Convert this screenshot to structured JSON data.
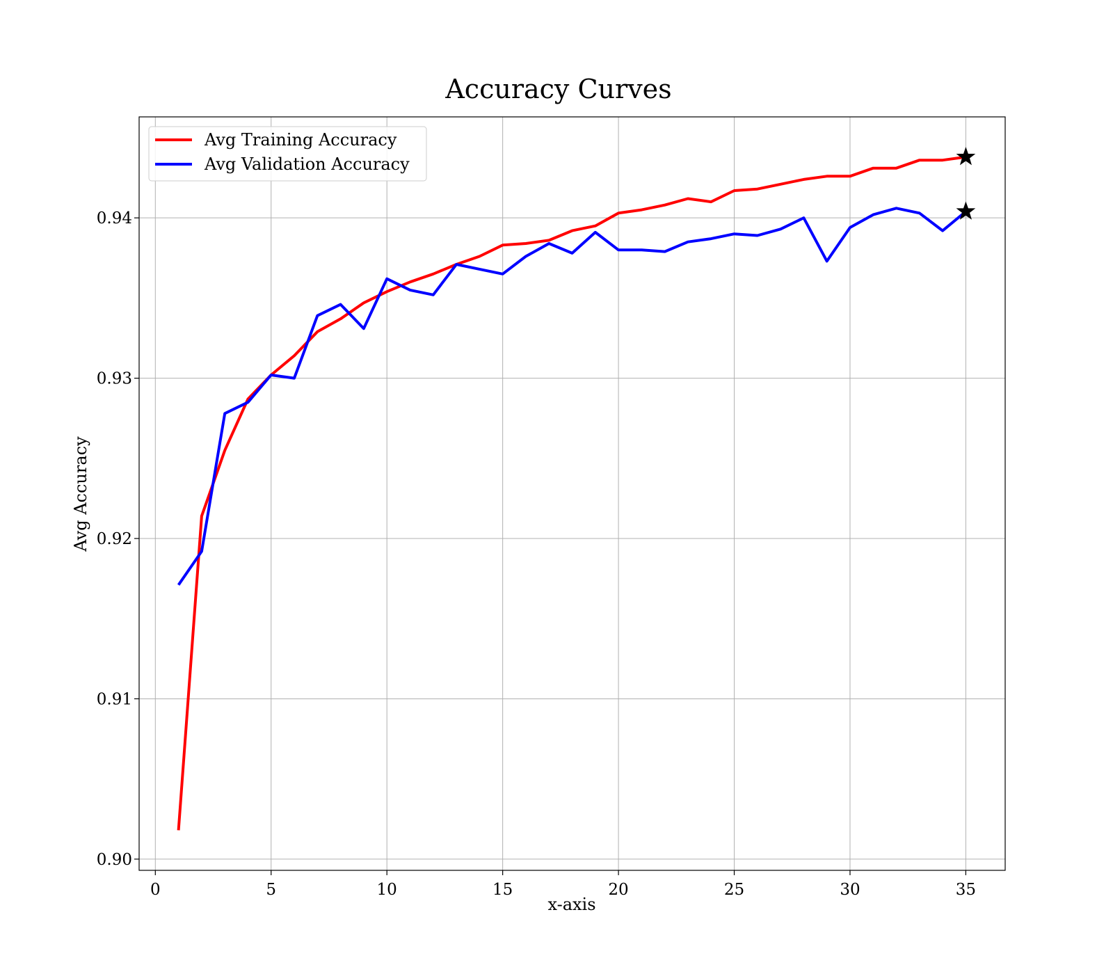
{
  "chart_data": {
    "type": "line",
    "title": "Accuracy Curves",
    "xlabel": "x-axis",
    "ylabel": "Avg Accuracy",
    "xlim": [
      -0.7,
      36.7
    ],
    "ylim": [
      0.8993,
      0.9463
    ],
    "xticks": [
      0,
      5,
      10,
      15,
      20,
      25,
      30,
      35
    ],
    "yticks": [
      0.9,
      0.91,
      0.92,
      0.93,
      0.94
    ],
    "ytick_labels": [
      "0.90",
      "0.91",
      "0.92",
      "0.93",
      "0.94"
    ],
    "grid": true,
    "legend_position": "top-left",
    "x": [
      1,
      2,
      3,
      4,
      5,
      6,
      7,
      8,
      9,
      10,
      11,
      12,
      13,
      14,
      15,
      16,
      17,
      18,
      19,
      20,
      21,
      22,
      23,
      24,
      25,
      26,
      27,
      28,
      29,
      30,
      31,
      32,
      33,
      34,
      35
    ],
    "series": [
      {
        "name": "Avg Training Accuracy",
        "color": "#ff0000",
        "values": [
          0.9018,
          0.9214,
          0.9255,
          0.9287,
          0.9302,
          0.9314,
          0.9329,
          0.9337,
          0.9347,
          0.9354,
          0.936,
          0.9365,
          0.9371,
          0.9376,
          0.9383,
          0.9384,
          0.9386,
          0.9392,
          0.9395,
          0.9403,
          0.9405,
          0.9408,
          0.9412,
          0.941,
          0.9417,
          0.9418,
          0.9421,
          0.9424,
          0.9426,
          0.9426,
          0.9431,
          0.9431,
          0.9436,
          0.9436,
          0.9438
        ],
        "best_marker": {
          "x": 35,
          "y": 0.9438
        }
      },
      {
        "name": "Avg Validation Accuracy",
        "color": "#0000ff",
        "values": [
          0.9171,
          0.9192,
          0.9278,
          0.9285,
          0.9302,
          0.93,
          0.9339,
          0.9346,
          0.9331,
          0.9362,
          0.9355,
          0.9352,
          0.9371,
          0.9368,
          0.9365,
          0.9376,
          0.9384,
          0.9378,
          0.9391,
          0.938,
          0.938,
          0.9379,
          0.9385,
          0.9387,
          0.939,
          0.9389,
          0.9393,
          0.94,
          0.9373,
          0.9394,
          0.9402,
          0.9406,
          0.9403,
          0.9392,
          0.9404
        ],
        "best_marker": {
          "x": 35,
          "y": 0.9404
        }
      }
    ]
  }
}
